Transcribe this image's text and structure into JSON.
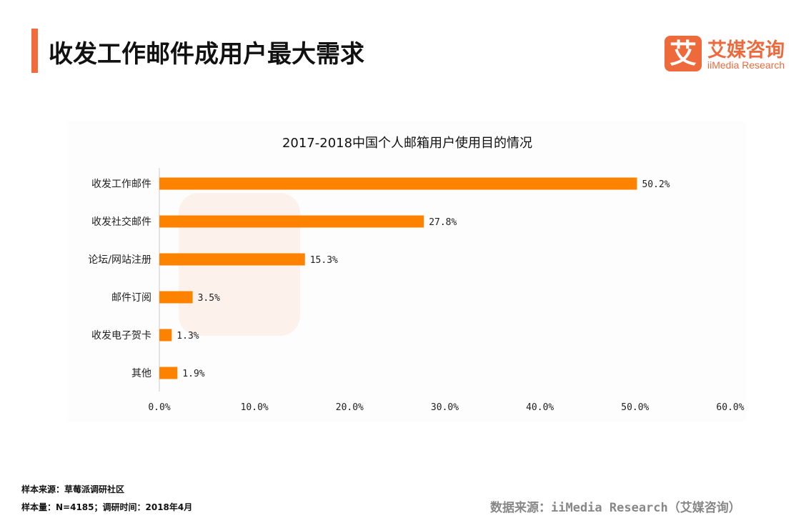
{
  "header": {
    "title": "收发工作邮件成用户最大需求"
  },
  "logo": {
    "mark": "艾",
    "cn": "艾媒咨询",
    "en": "iiMedia Research"
  },
  "colors": {
    "accent": "#f26b3a",
    "bar": "#fd8200"
  },
  "chart_data": {
    "type": "bar",
    "orientation": "horizontal",
    "title": "2017-2018中国个人邮箱用户使用目的情况",
    "categories": [
      "收发工作邮件",
      "收发社交邮件",
      "论坛/网站注册",
      "邮件订阅",
      "收发电子贺卡",
      "其他"
    ],
    "values": [
      50.2,
      27.8,
      15.3,
      3.5,
      1.3,
      1.9
    ],
    "data_labels": [
      "50.2%",
      "27.8%",
      "15.3%",
      "3.5%",
      "1.3%",
      "1.9%"
    ],
    "xlim": [
      0,
      60
    ],
    "x_ticks": [
      "0.0%",
      "10.0%",
      "20.0%",
      "30.0%",
      "40.0%",
      "50.0%",
      "60.0%"
    ],
    "grid": false
  },
  "footer": {
    "sample_source": "样本来源：草莓派调研社区",
    "sample_size": "样本量：N=4185；调研时间：2018年4月",
    "data_source": "数据来源：iiMedia Research（艾媒咨询）"
  }
}
